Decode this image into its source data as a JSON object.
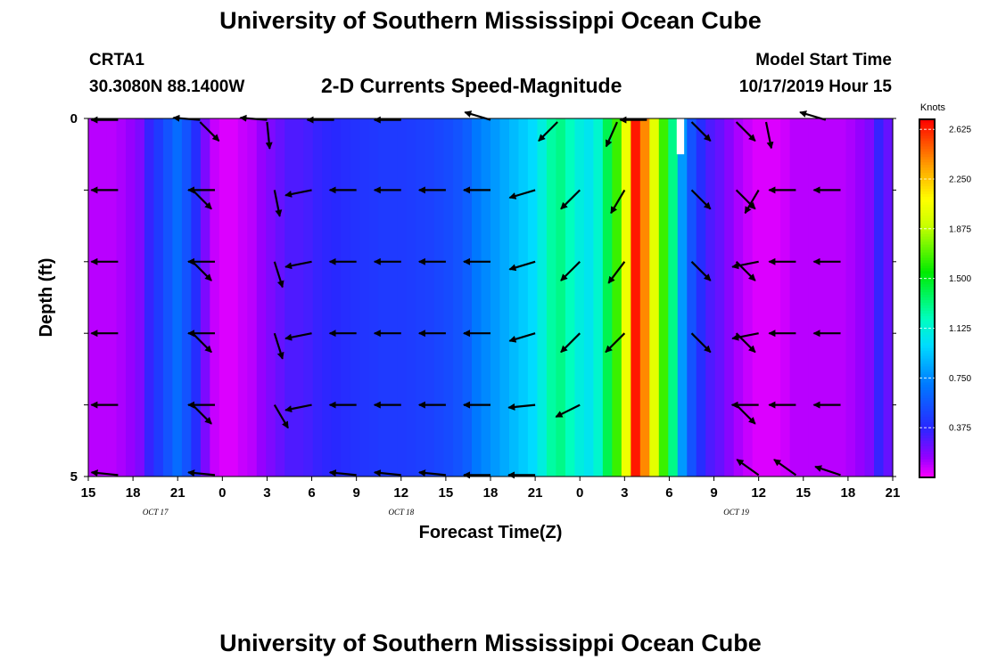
{
  "header": {
    "title": "University of Southern Mississippi Ocean Cube",
    "station": "CRTA1",
    "coords": "30.3080N 88.1400W",
    "subtitle": "2-D Currents Speed-Magnitude",
    "model_start_label": "Model Start Time",
    "model_start_value": "10/17/2019 Hour 15"
  },
  "footer": {
    "title": "University of Southern Mississippi Ocean Cube"
  },
  "chart_data": {
    "type": "heatmap",
    "xlabel": "Forecast Time(Z)",
    "ylabel": "Depth (ft)",
    "x_hours": [
      0,
      3,
      6,
      9,
      12,
      15,
      18,
      21,
      24,
      27,
      30,
      33,
      36,
      39,
      42,
      45,
      48,
      51,
      54
    ],
    "x_tick_labels": [
      "15",
      "18",
      "21",
      "0",
      "3",
      "6",
      "9",
      "12",
      "15",
      "18",
      "21",
      "0",
      "3",
      "6",
      "9",
      "12",
      "15",
      "18",
      "21"
    ],
    "x_range": [
      0,
      54
    ],
    "date_labels": [
      {
        "label": "OCT 17",
        "hour": 4.5
      },
      {
        "label": "OCT 18",
        "hour": 21
      },
      {
        "label": "OCT 19",
        "hour": 43.5
      }
    ],
    "y_range": [
      0,
      5
    ],
    "y_tick_labels": [
      "0",
      "",
      "",
      "",
      "",
      "5"
    ],
    "colorbar": {
      "title": "Knots",
      "ticks": [
        "2.625",
        "2.250",
        "1.875",
        "1.500",
        "1.125",
        "0.750",
        "0.375"
      ],
      "tick_values": [
        2.625,
        2.25,
        1.875,
        1.5,
        1.125,
        0.75,
        0.375
      ],
      "range": [
        0,
        2.7
      ]
    },
    "speed_by_column": [
      0.1,
      0.1,
      0.1,
      0.12,
      0.15,
      0.2,
      0.35,
      0.45,
      0.55,
      0.65,
      0.55,
      0.4,
      0.2,
      0.08,
      0.05,
      0.05,
      0.08,
      0.1,
      0.15,
      0.2,
      0.25,
      0.3,
      0.3,
      0.32,
      0.35,
      0.37,
      0.38,
      0.4,
      0.42,
      0.43,
      0.44,
      0.45,
      0.45,
      0.45,
      0.46,
      0.47,
      0.48,
      0.5,
      0.52,
      0.55,
      0.6,
      0.7,
      0.75,
      0.8,
      0.85,
      0.9,
      0.95,
      1.0,
      1.1,
      1.25,
      1.3,
      1.2,
      1.1,
      1.05,
      1.15,
      1.4,
      1.65,
      2.05,
      2.65,
      2.4,
      2.0,
      1.65,
      1.3,
      0.8,
      0.55,
      0.4,
      0.3,
      0.25,
      0.18,
      0.12,
      0.08,
      0.05,
      0.05,
      0.05,
      0.07,
      0.1,
      0.1,
      0.1,
      0.1,
      0.1,
      0.1,
      0.12,
      0.15,
      0.2,
      0.35,
      0.25
    ],
    "vectors": [
      {
        "t": 2.0,
        "d": 0.02,
        "dx": -1,
        "dy": 0
      },
      {
        "t": 7.5,
        "d": 0.02,
        "dx": -1,
        "dy": -0.08
      },
      {
        "t": 12.0,
        "d": 0.02,
        "dx": -1,
        "dy": -0.08
      },
      {
        "t": 16.5,
        "d": 0.02,
        "dx": -1,
        "dy": 0
      },
      {
        "t": 21.0,
        "d": 0.02,
        "dx": -1,
        "dy": 0
      },
      {
        "t": 27.0,
        "d": 0.02,
        "dx": -1,
        "dy": -0.3
      },
      {
        "t": 37.5,
        "d": 0.02,
        "dx": -1,
        "dy": 0
      },
      {
        "t": 49.5,
        "d": 0.02,
        "dx": -1,
        "dy": -0.3
      },
      {
        "t": 7.5,
        "d": 0.05,
        "dx": 0.7,
        "dy": 0.7
      },
      {
        "t": 12.0,
        "d": 0.05,
        "dx": 0.1,
        "dy": 1
      },
      {
        "t": 31.5,
        "d": 0.05,
        "dx": -0.7,
        "dy": 0.7
      },
      {
        "t": 35.5,
        "d": 0.05,
        "dx": -0.4,
        "dy": 0.9
      },
      {
        "t": 40.5,
        "d": 0.05,
        "dx": 0.7,
        "dy": 0.7
      },
      {
        "t": 43.5,
        "d": 0.05,
        "dx": 0.7,
        "dy": 0.7
      },
      {
        "t": 45.5,
        "d": 0.05,
        "dx": 0.2,
        "dy": 1
      },
      {
        "t": 2.0,
        "d": 1,
        "dx": -1,
        "dy": 0
      },
      {
        "t": 7.0,
        "d": 1,
        "dx": 0.7,
        "dy": 0.7
      },
      {
        "t": 8.5,
        "d": 1,
        "dx": -1,
        "dy": 0
      },
      {
        "t": 12.5,
        "d": 1,
        "dx": 0.2,
        "dy": 1
      },
      {
        "t": 15.0,
        "d": 1,
        "dx": -1,
        "dy": 0.2
      },
      {
        "t": 18.0,
        "d": 1,
        "dx": -1,
        "dy": 0
      },
      {
        "t": 21.0,
        "d": 1,
        "dx": -1,
        "dy": 0
      },
      {
        "t": 24.0,
        "d": 1,
        "dx": -1,
        "dy": 0
      },
      {
        "t": 27.0,
        "d": 1,
        "dx": -1,
        "dy": 0
      },
      {
        "t": 30.0,
        "d": 1,
        "dx": -1,
        "dy": 0.3
      },
      {
        "t": 33.0,
        "d": 1,
        "dx": -0.7,
        "dy": 0.7
      },
      {
        "t": 36.0,
        "d": 1,
        "dx": -0.5,
        "dy": 0.85
      },
      {
        "t": 40.5,
        "d": 1,
        "dx": 0.7,
        "dy": 0.7
      },
      {
        "t": 43.5,
        "d": 1,
        "dx": 0.7,
        "dy": 0.7
      },
      {
        "t": 45.0,
        "d": 1,
        "dx": -0.5,
        "dy": 0.85
      },
      {
        "t": 47.5,
        "d": 1,
        "dx": -1,
        "dy": 0
      },
      {
        "t": 50.5,
        "d": 1,
        "dx": -1,
        "dy": 0
      },
      {
        "t": 2.0,
        "d": 2,
        "dx": -1,
        "dy": 0
      },
      {
        "t": 7.0,
        "d": 2,
        "dx": 0.7,
        "dy": 0.7
      },
      {
        "t": 8.5,
        "d": 2,
        "dx": -1,
        "dy": 0
      },
      {
        "t": 12.5,
        "d": 2,
        "dx": 0.3,
        "dy": 0.95
      },
      {
        "t": 15.0,
        "d": 2,
        "dx": -1,
        "dy": 0.2
      },
      {
        "t": 18.0,
        "d": 2,
        "dx": -1,
        "dy": 0
      },
      {
        "t": 21.0,
        "d": 2,
        "dx": -1,
        "dy": 0
      },
      {
        "t": 24.0,
        "d": 2,
        "dx": -1,
        "dy": 0
      },
      {
        "t": 27.0,
        "d": 2,
        "dx": -1,
        "dy": 0
      },
      {
        "t": 30.0,
        "d": 2,
        "dx": -1,
        "dy": 0.3
      },
      {
        "t": 33.0,
        "d": 2,
        "dx": -0.7,
        "dy": 0.7
      },
      {
        "t": 36.0,
        "d": 2,
        "dx": -0.6,
        "dy": 0.8
      },
      {
        "t": 40.5,
        "d": 2,
        "dx": 0.7,
        "dy": 0.7
      },
      {
        "t": 43.5,
        "d": 2,
        "dx": 0.7,
        "dy": 0.7
      },
      {
        "t": 45.0,
        "d": 2,
        "dx": -1,
        "dy": 0.2
      },
      {
        "t": 47.5,
        "d": 2,
        "dx": -1,
        "dy": 0
      },
      {
        "t": 50.5,
        "d": 2,
        "dx": -1,
        "dy": 0
      },
      {
        "t": 2.0,
        "d": 3,
        "dx": -1,
        "dy": 0
      },
      {
        "t": 7.0,
        "d": 3,
        "dx": 0.7,
        "dy": 0.7
      },
      {
        "t": 8.5,
        "d": 3,
        "dx": -1,
        "dy": 0
      },
      {
        "t": 12.5,
        "d": 3,
        "dx": 0.3,
        "dy": 0.95
      },
      {
        "t": 15.0,
        "d": 3,
        "dx": -1,
        "dy": 0.2
      },
      {
        "t": 18.0,
        "d": 3,
        "dx": -1,
        "dy": 0
      },
      {
        "t": 21.0,
        "d": 3,
        "dx": -1,
        "dy": 0
      },
      {
        "t": 24.0,
        "d": 3,
        "dx": -1,
        "dy": 0
      },
      {
        "t": 27.0,
        "d": 3,
        "dx": -1,
        "dy": 0
      },
      {
        "t": 30.0,
        "d": 3,
        "dx": -1,
        "dy": 0.3
      },
      {
        "t": 33.0,
        "d": 3,
        "dx": -0.7,
        "dy": 0.7
      },
      {
        "t": 36.0,
        "d": 3,
        "dx": -0.7,
        "dy": 0.7
      },
      {
        "t": 40.5,
        "d": 3,
        "dx": 0.7,
        "dy": 0.7
      },
      {
        "t": 43.5,
        "d": 3,
        "dx": 0.7,
        "dy": 0.7
      },
      {
        "t": 45.0,
        "d": 3,
        "dx": -1,
        "dy": 0.2
      },
      {
        "t": 47.5,
        "d": 3,
        "dx": -1,
        "dy": 0
      },
      {
        "t": 50.5,
        "d": 3,
        "dx": -1,
        "dy": 0
      },
      {
        "t": 2.0,
        "d": 4,
        "dx": -1,
        "dy": 0
      },
      {
        "t": 7.0,
        "d": 4,
        "dx": 0.7,
        "dy": 0.7
      },
      {
        "t": 8.5,
        "d": 4,
        "dx": -1,
        "dy": 0
      },
      {
        "t": 12.5,
        "d": 4,
        "dx": 0.5,
        "dy": 0.85
      },
      {
        "t": 15.0,
        "d": 4,
        "dx": -1,
        "dy": 0.2
      },
      {
        "t": 18.0,
        "d": 4,
        "dx": -1,
        "dy": 0
      },
      {
        "t": 21.0,
        "d": 4,
        "dx": -1,
        "dy": 0
      },
      {
        "t": 24.0,
        "d": 4,
        "dx": -1,
        "dy": 0
      },
      {
        "t": 27.0,
        "d": 4,
        "dx": -1,
        "dy": 0
      },
      {
        "t": 30.0,
        "d": 4,
        "dx": -1,
        "dy": 0.1
      },
      {
        "t": 33.0,
        "d": 4,
        "dx": -0.9,
        "dy": 0.45
      },
      {
        "t": 43.5,
        "d": 4,
        "dx": 0.7,
        "dy": 0.7
      },
      {
        "t": 45.0,
        "d": 4,
        "dx": -1,
        "dy": 0
      },
      {
        "t": 47.5,
        "d": 4,
        "dx": -1,
        "dy": 0
      },
      {
        "t": 50.5,
        "d": 4,
        "dx": -1,
        "dy": 0
      },
      {
        "t": 2.0,
        "d": 4.98,
        "dx": -1,
        "dy": -0.1
      },
      {
        "t": 8.5,
        "d": 4.98,
        "dx": -1,
        "dy": -0.1
      },
      {
        "t": 18.0,
        "d": 4.98,
        "dx": -1,
        "dy": -0.1
      },
      {
        "t": 21.0,
        "d": 4.98,
        "dx": -1,
        "dy": -0.1
      },
      {
        "t": 24.0,
        "d": 4.98,
        "dx": -1,
        "dy": -0.1
      },
      {
        "t": 27.0,
        "d": 4.98,
        "dx": -1,
        "dy": 0
      },
      {
        "t": 30.0,
        "d": 4.98,
        "dx": -1,
        "dy": 0
      },
      {
        "t": 45.0,
        "d": 4.98,
        "dx": -0.7,
        "dy": -0.5
      },
      {
        "t": 47.5,
        "d": 4.98,
        "dx": -0.7,
        "dy": -0.5
      },
      {
        "t": 50.5,
        "d": 4.98,
        "dx": -0.9,
        "dy": -0.3
      }
    ],
    "max_patch": {
      "t_from": 39.5,
      "t_to": 40.0,
      "d_from": 0,
      "d_to": 0.5
    }
  }
}
